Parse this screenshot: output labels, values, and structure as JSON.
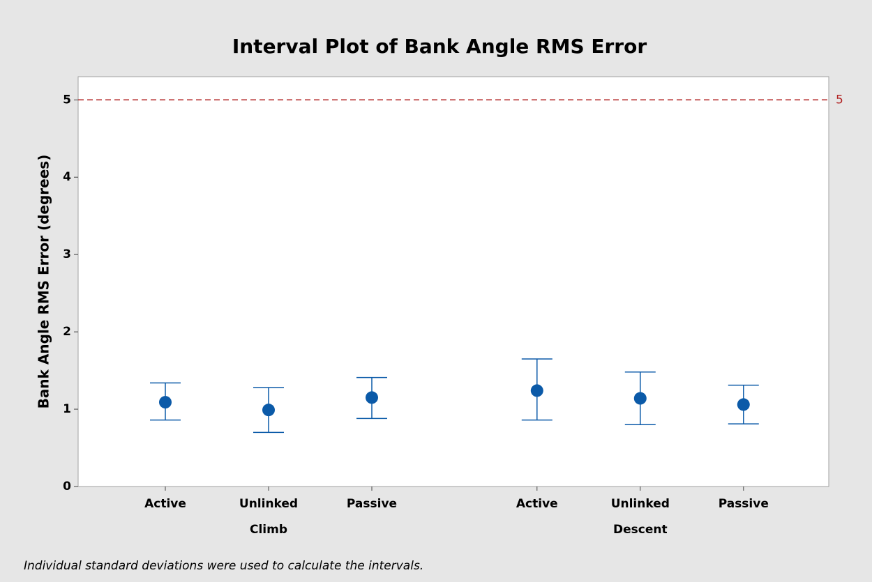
{
  "chart_data": {
    "type": "interval",
    "title": "Interval Plot of Bank Angle RMS Error",
    "ylabel": "Bank Angle RMS Error (degrees)",
    "footnote": "Individual standard deviations were used to calculate the intervals.",
    "color": "#0b5aa8",
    "groups": [
      {
        "name": "Climb",
        "categories": [
          "Active",
          "Unlinked",
          "Passive"
        ],
        "values": [
          1.09,
          0.99,
          1.15
        ],
        "lower": [
          0.86,
          0.7,
          0.88
        ],
        "upper": [
          1.34,
          1.28,
          1.41
        ]
      },
      {
        "name": "Descent",
        "categories": [
          "Active",
          "Unlinked",
          "Passive"
        ],
        "values": [
          1.24,
          1.14,
          1.06
        ],
        "lower": [
          0.86,
          0.8,
          0.81
        ],
        "upper": [
          1.65,
          1.48,
          1.31
        ]
      }
    ],
    "reference_line": {
      "value": 5,
      "label": "5",
      "color": "#b22222"
    },
    "ylim": [
      0,
      5.3
    ],
    "yticks": [
      0,
      1,
      2,
      3,
      4,
      5
    ]
  }
}
